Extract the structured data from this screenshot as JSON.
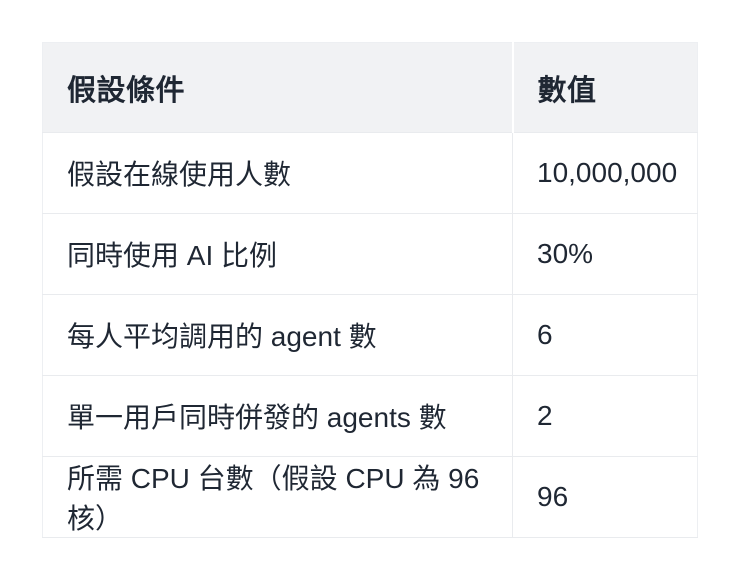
{
  "table": {
    "columns": [
      {
        "label": "假設條件"
      },
      {
        "label": "數值"
      }
    ],
    "rows": [
      {
        "condition": "假設在線使用人數",
        "value": "10,000,000"
      },
      {
        "condition": "同時使用 AI 比例",
        "value": "30%"
      },
      {
        "condition": "每人平均調用的 agent 數",
        "value": "6"
      },
      {
        "condition": "單一用戶同時併發的 agents 數",
        "value": "2"
      },
      {
        "condition": "所需 CPU 台數（假設 CPU 為 96 核）",
        "value": "96"
      }
    ],
    "colors": {
      "header_bg": "#f1f2f4",
      "text": "#1f2733",
      "border": "#e9ebee",
      "background": "#ffffff"
    }
  }
}
